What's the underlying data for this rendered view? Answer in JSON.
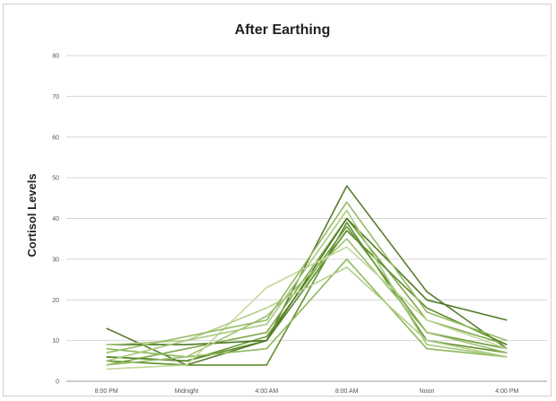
{
  "chart_data": {
    "type": "line",
    "title": "After Earthing",
    "ylabel": "Cortisol Levels",
    "xlabel": "",
    "categories": [
      "8:00 PM",
      "Midnight",
      "4:00 AM",
      "8:00 AM",
      "Noon",
      "4:00 PM"
    ],
    "yticks": [
      "0",
      "10",
      "20",
      "30",
      "40",
      "50",
      "60",
      "70",
      "80"
    ],
    "ylim": [
      0,
      80
    ],
    "grid": true,
    "legend": "none",
    "series": [
      {
        "values": [
          13,
          4,
          10,
          48,
          22,
          8
        ],
        "color": "#5a7a30"
      },
      {
        "values": [
          5,
          4,
          4,
          39,
          10,
          7
        ],
        "color": "#5f8f2c"
      },
      {
        "values": [
          6,
          5,
          11,
          38,
          12,
          8
        ],
        "color": "#6f9a38"
      },
      {
        "values": [
          4,
          8,
          12,
          40,
          15,
          9
        ],
        "color": "#7fa848"
      },
      {
        "values": [
          6,
          5,
          10,
          37,
          18,
          9
        ],
        "color": "#5a8a2a"
      },
      {
        "values": [
          9,
          9,
          10,
          40,
          20,
          15
        ],
        "color": "#4f7a24"
      },
      {
        "values": [
          8,
          6,
          8,
          30,
          8,
          6
        ],
        "color": "#8cb85a"
      },
      {
        "values": [
          4,
          6,
          16,
          35,
          12,
          7
        ],
        "color": "#9cc070"
      },
      {
        "values": [
          3,
          4,
          23,
          33,
          15,
          8
        ],
        "color": "#c2d89c"
      },
      {
        "values": [
          9,
          10,
          18,
          28,
          10,
          6
        ],
        "color": "#b4cf8c"
      },
      {
        "values": [
          5,
          10,
          14,
          42,
          9,
          6
        ],
        "color": "#a6c97e"
      },
      {
        "values": [
          7,
          11,
          15,
          44,
          17,
          10
        ],
        "color": "#93bb62"
      }
    ]
  }
}
